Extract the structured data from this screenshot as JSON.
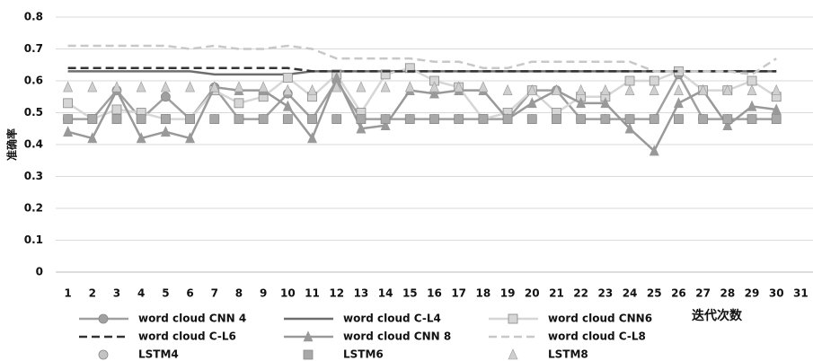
{
  "chart_data": {
    "type": "line",
    "y_label": "准确率",
    "x_label": "迭代次数",
    "x": [
      1,
      2,
      3,
      4,
      5,
      6,
      7,
      8,
      9,
      10,
      11,
      12,
      13,
      14,
      15,
      16,
      17,
      18,
      19,
      20,
      21,
      22,
      23,
      24,
      25,
      26,
      27,
      28,
      29,
      30
    ],
    "xlim": [
      0.5,
      31.5
    ],
    "xticks": [
      1,
      2,
      3,
      4,
      5,
      6,
      7,
      8,
      9,
      10,
      11,
      12,
      13,
      14,
      15,
      16,
      17,
      18,
      19,
      20,
      21,
      22,
      23,
      24,
      25,
      26,
      27,
      28,
      29,
      30,
      31
    ],
    "ylim": [
      0,
      0.8
    ],
    "yticks": [
      0,
      0.1,
      0.2,
      0.3,
      0.4,
      0.5,
      0.6,
      0.7,
      0.8
    ],
    "grid": true,
    "series": [
      {
        "name": "word cloud CNN 4",
        "color": "#a0a0a0",
        "marker": "circle",
        "line": true,
        "dash": false,
        "values": [
          0.48,
          0.48,
          0.57,
          0.48,
          0.55,
          0.48,
          0.58,
          0.48,
          0.48,
          0.56,
          0.48,
          0.6,
          0.48,
          0.48,
          0.48,
          0.48,
          0.48,
          0.48,
          0.48,
          0.57,
          0.57,
          0.48,
          0.48,
          0.48,
          0.48,
          0.62,
          0.48,
          0.48,
          0.48,
          0.48
        ]
      },
      {
        "name": "word cloud C-L4",
        "color": "#6e6e6e",
        "line": true,
        "dash": false,
        "values": [
          0.63,
          0.63,
          0.63,
          0.63,
          0.63,
          0.63,
          0.62,
          0.62,
          0.62,
          0.62,
          0.63,
          0.63,
          0.63,
          0.63,
          0.63,
          0.63,
          0.63,
          0.63,
          0.63,
          0.63,
          0.63,
          0.63,
          0.63,
          0.63,
          0.63,
          0.63,
          0.63,
          0.63,
          0.63,
          0.63
        ]
      },
      {
        "name": "word cloud CNN6",
        "color": "#d6d6d6",
        "marker": "square",
        "line": true,
        "dash": false,
        "values": [
          0.53,
          0.48,
          0.51,
          0.5,
          0.48,
          0.48,
          0.57,
          0.53,
          0.55,
          0.61,
          0.55,
          0.62,
          0.5,
          0.62,
          0.64,
          0.6,
          0.58,
          0.48,
          0.5,
          0.57,
          0.5,
          0.55,
          0.55,
          0.6,
          0.6,
          0.63,
          0.57,
          0.57,
          0.6,
          0.55
        ]
      },
      {
        "name": "word cloud C-L6",
        "color": "#333333",
        "line": true,
        "dash": true,
        "values": [
          0.64,
          0.64,
          0.64,
          0.64,
          0.64,
          0.64,
          0.64,
          0.64,
          0.64,
          0.64,
          0.63,
          0.63,
          0.63,
          0.63,
          0.63,
          0.63,
          0.63,
          0.63,
          0.63,
          0.63,
          0.63,
          0.63,
          0.63,
          0.63,
          0.63,
          0.63,
          0.63,
          0.63,
          0.63,
          0.63
        ]
      },
      {
        "name": "word cloud CNN 8",
        "color": "#999999",
        "marker": "triangle",
        "line": true,
        "dash": false,
        "values": [
          0.44,
          0.42,
          0.57,
          0.42,
          0.44,
          0.42,
          0.58,
          0.57,
          0.57,
          0.52,
          0.42,
          0.61,
          0.45,
          0.46,
          0.57,
          0.56,
          0.57,
          0.57,
          0.48,
          0.53,
          0.57,
          0.53,
          0.53,
          0.45,
          0.38,
          0.53,
          0.57,
          0.46,
          0.52,
          0.51
        ]
      },
      {
        "name": "word cloud C-L8",
        "color": "#c8c8c8",
        "line": true,
        "dash": true,
        "values": [
          0.71,
          0.71,
          0.71,
          0.71,
          0.71,
          0.7,
          0.71,
          0.7,
          0.7,
          0.71,
          0.7,
          0.67,
          0.67,
          0.67,
          0.67,
          0.66,
          0.66,
          0.64,
          0.64,
          0.66,
          0.66,
          0.66,
          0.66,
          0.66,
          0.63,
          0.63,
          0.63,
          0.63,
          0.62,
          0.67
        ]
      },
      {
        "name": "LSTM4",
        "color": "#c4c4c4",
        "marker": "circle",
        "line": false,
        "dash": false,
        "values": [
          0.48,
          0.48,
          0.48,
          0.48,
          0.48,
          0.48,
          0.48,
          0.48,
          0.48,
          0.48,
          0.48,
          0.48,
          0.48,
          0.48,
          0.48,
          0.48,
          0.48,
          0.48,
          0.48,
          0.48,
          0.48,
          0.48,
          0.48,
          0.48,
          0.48,
          0.48,
          0.48,
          0.48,
          0.48,
          0.48
        ]
      },
      {
        "name": "LSTM6",
        "color": "#a8a8a8",
        "marker": "square",
        "line": false,
        "dash": false,
        "values": [
          0.48,
          0.48,
          0.48,
          0.48,
          0.48,
          0.48,
          0.48,
          0.48,
          0.48,
          0.48,
          0.48,
          0.48,
          0.48,
          0.48,
          0.48,
          0.48,
          0.48,
          0.48,
          0.48,
          0.48,
          0.48,
          0.48,
          0.48,
          0.48,
          0.48,
          0.48,
          0.48,
          0.48,
          0.48,
          0.48
        ]
      },
      {
        "name": "LSTM8",
        "color": "#cfcfcf",
        "marker": "triangle",
        "line": false,
        "dash": false,
        "values": [
          0.58,
          0.58,
          0.58,
          0.58,
          0.58,
          0.58,
          0.58,
          0.58,
          0.58,
          0.57,
          0.57,
          0.58,
          0.58,
          0.58,
          0.58,
          0.58,
          0.58,
          0.58,
          0.57,
          0.57,
          0.57,
          0.57,
          0.57,
          0.57,
          0.57,
          0.57,
          0.57,
          0.57,
          0.57,
          0.57
        ]
      }
    ]
  }
}
